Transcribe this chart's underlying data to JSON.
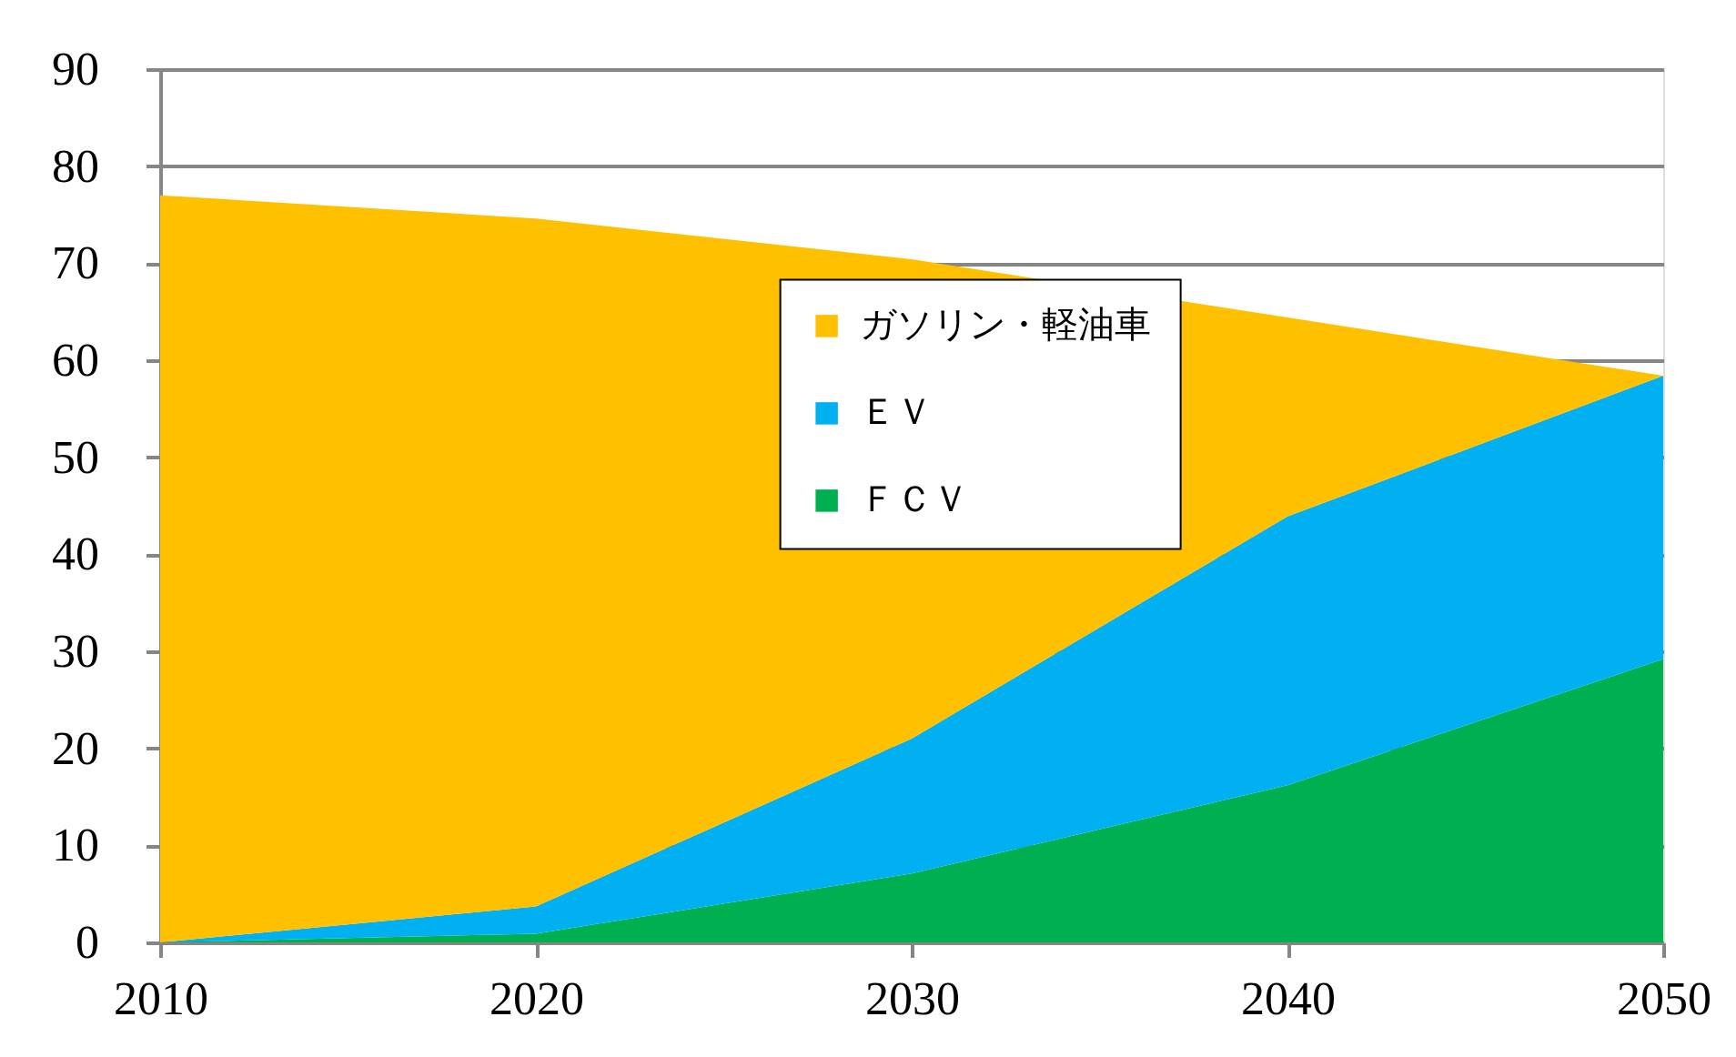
{
  "chart_data": {
    "type": "area",
    "stacked": true,
    "x": [
      2010,
      2020,
      2030,
      2040,
      2050
    ],
    "series": [
      {
        "name": "ＦＣＶ",
        "color": "#00b050",
        "values": [
          0,
          0.9,
          7.1,
          16.2,
          29.2
        ]
      },
      {
        "name": "ＥＶ",
        "color": "#00b0f0",
        "values": [
          0,
          2.8,
          13.9,
          27.7,
          29.2
        ]
      },
      {
        "name": "ガソリン・軽油車",
        "color": "#ffc000",
        "values": [
          77,
          70.9,
          49.4,
          20.5,
          0
        ]
      }
    ],
    "xlim": [
      2010,
      2050
    ],
    "xticks": [
      2010,
      2020,
      2030,
      2040,
      2050
    ],
    "ylim": [
      0,
      90
    ],
    "yticks": [
      0,
      10,
      20,
      30,
      40,
      50,
      60,
      70,
      80,
      90
    ],
    "grid": "y",
    "legend": "top"
  }
}
